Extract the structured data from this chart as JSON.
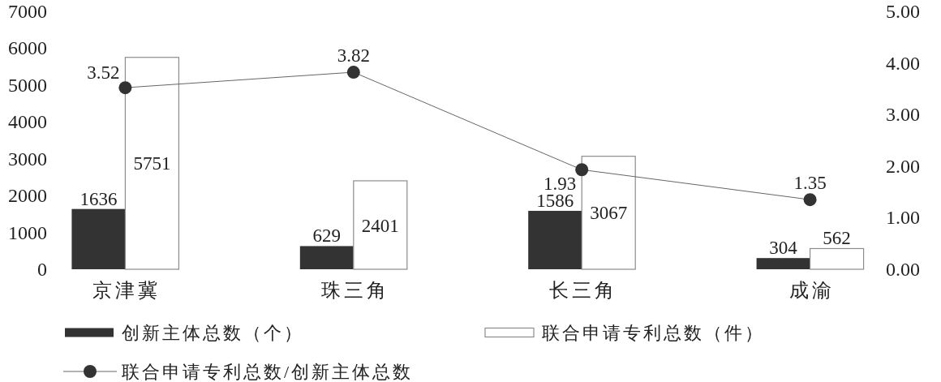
{
  "chart_data": {
    "type": "bar",
    "categories": [
      "京津冀",
      "珠三角",
      "长三角",
      "成渝"
    ],
    "series": [
      {
        "name": "创新主体总数（个）",
        "color": "#333333",
        "values": [
          1636,
          629,
          1586,
          304
        ]
      },
      {
        "name": "联合申请专利总数（件）",
        "color": "#ffffff",
        "values": [
          5751,
          2401,
          3067,
          562
        ]
      },
      {
        "name": "联合申请专利总数/创新主体总数",
        "type": "line",
        "axis": "y2",
        "color": "#333333",
        "values": [
          3.52,
          3.82,
          1.93,
          1.35
        ]
      }
    ],
    "ylim": [
      0,
      7000
    ],
    "yticks": [
      0,
      1000,
      2000,
      3000,
      4000,
      5000,
      6000,
      7000
    ],
    "y2lim": [
      0,
      5
    ],
    "y2ticks": [
      {
        "value": 0,
        "label": "0.00"
      },
      {
        "value": 1,
        "label": "1.00"
      },
      {
        "value": 2,
        "label": "2.00"
      },
      {
        "value": 3,
        "label": "3.00"
      },
      {
        "value": 4,
        "label": "4.00"
      },
      {
        "value": 5,
        "label": "5.00"
      }
    ],
    "data_labels": true,
    "legend": "bottom",
    "marker": "circle"
  }
}
